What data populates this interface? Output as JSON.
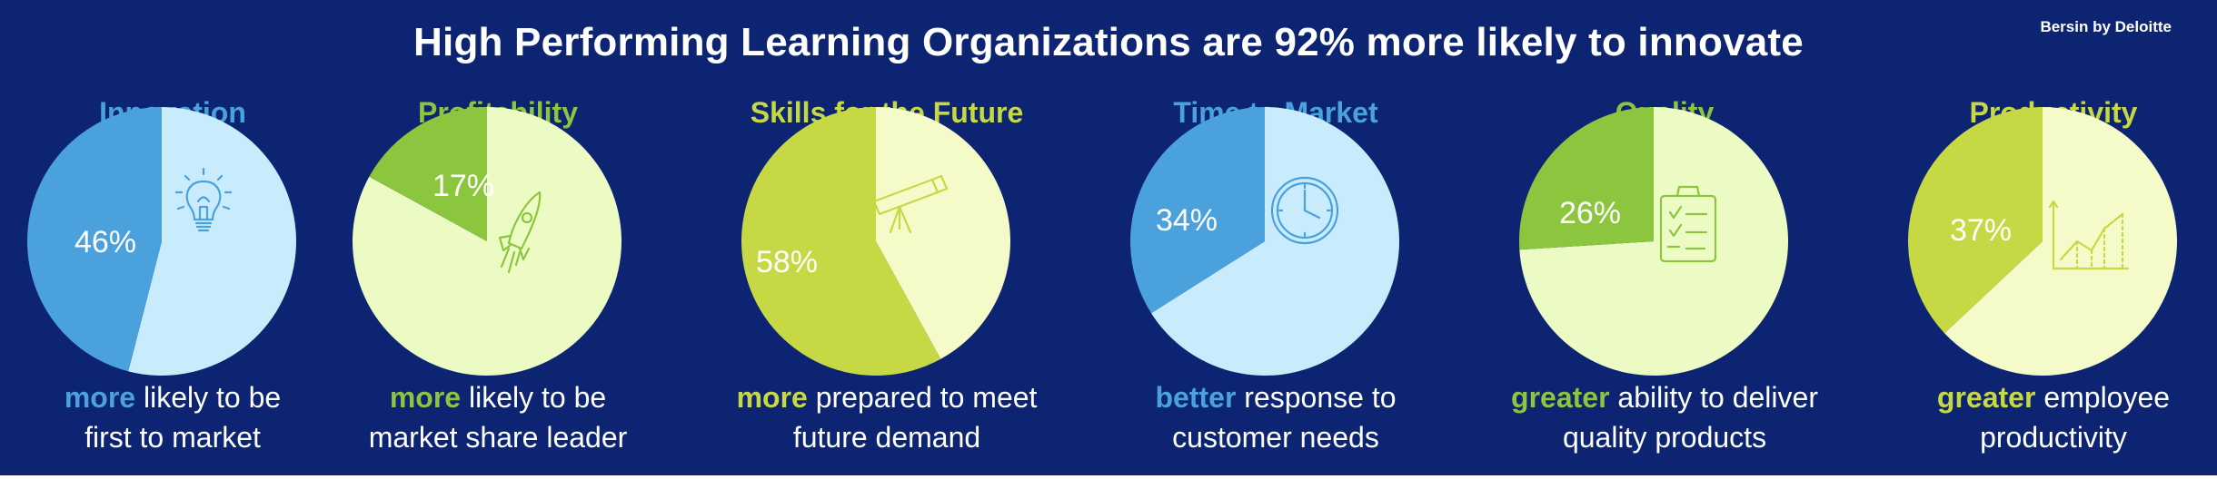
{
  "title": "High Performing Learning Organizations are 92% more likely to innovate",
  "brand": "Bersin by Deloitte",
  "colors": {
    "background": "#0d2472",
    "blue_dark": "#4ba1dc",
    "blue_light": "#c9ecfc",
    "green_dark": "#8cc63e",
    "green_light": "#ecfbc4",
    "olive_dark": "#c6d944",
    "olive_light": "#f5fbc8"
  },
  "chart_data": [
    {
      "type": "pie",
      "title": "Innovation",
      "slices": [
        {
          "label": "46%",
          "value": 46,
          "color": "#4ba1dc"
        },
        {
          "value": 54,
          "color": "#c9ecfc"
        }
      ],
      "caption_keyword": "more",
      "caption_rest": "likely to be",
      "caption_line2": "first to market",
      "title_color": "#4ba1dc",
      "icon": "lightbulb-icon"
    },
    {
      "type": "pie",
      "title": "Profitability",
      "slices": [
        {
          "label": "17%",
          "value": 17,
          "color": "#8cc63e"
        },
        {
          "value": 83,
          "color": "#ecfbc4"
        }
      ],
      "caption_keyword": "more",
      "caption_rest": "likely to be",
      "caption_line2": "market share leader",
      "title_color": "#8cc63e",
      "icon": "rocket-icon"
    },
    {
      "type": "pie",
      "title": "Skills for the Future",
      "slices": [
        {
          "label": "58%",
          "value": 58,
          "color": "#c6d944"
        },
        {
          "value": 42,
          "color": "#f5fbc8"
        }
      ],
      "caption_keyword": "more",
      "caption_rest": "prepared to meet",
      "caption_line2": "future demand",
      "title_color": "#c6d944",
      "icon": "telescope-icon"
    },
    {
      "type": "pie",
      "title": "Time to Market",
      "slices": [
        {
          "label": "34%",
          "value": 34,
          "color": "#4ba1dc"
        },
        {
          "value": 66,
          "color": "#c9ecfc"
        }
      ],
      "caption_keyword": "better",
      "caption_rest": "response to",
      "caption_line2": "customer needs",
      "title_color": "#4ba1dc",
      "icon": "clock-icon"
    },
    {
      "type": "pie",
      "title": "Quality",
      "slices": [
        {
          "label": "26%",
          "value": 26,
          "color": "#8cc63e"
        },
        {
          "value": 74,
          "color": "#ecfbc4"
        }
      ],
      "caption_keyword": "greater",
      "caption_rest": "ability to deliver",
      "caption_line2": "quality products",
      "title_color": "#8cc63e",
      "icon": "clipboard-icon"
    },
    {
      "type": "pie",
      "title": "Productivity",
      "slices": [
        {
          "label": "37%",
          "value": 37,
          "color": "#c6d944"
        },
        {
          "value": 63,
          "color": "#f5fbc8"
        }
      ],
      "caption_keyword": "greater",
      "caption_rest": "employee",
      "caption_line2": "productivity",
      "title_color": "#c6d944",
      "icon": "growth-chart-icon"
    }
  ]
}
